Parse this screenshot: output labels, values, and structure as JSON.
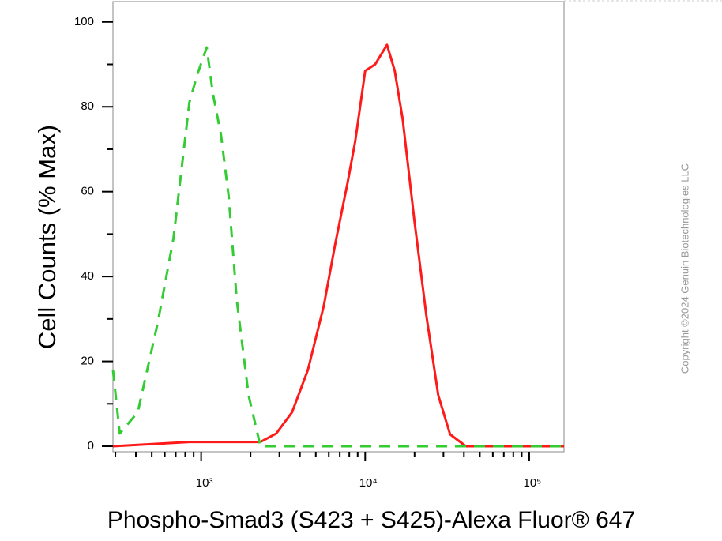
{
  "chart_data": {
    "type": "line",
    "x_label": "Phospho-Smad3 (S423 + S425)-Alexa Fluor® 647",
    "y_label": "Cell Counts (% Max)",
    "annotation": "Copyright ©2024 Genuin Biotechnologies LLC",
    "xscale": "log",
    "xlim": [
      290,
      163000
    ],
    "ylim": [
      -1.3,
      104.8
    ],
    "xticks": [
      {
        "value": 1000,
        "label": "10³"
      },
      {
        "value": 10000,
        "label": "10⁴"
      },
      {
        "value": 100000,
        "label": "10⁵"
      }
    ],
    "xminorticks": [
      300,
      400,
      500,
      600,
      700,
      800,
      900,
      2000,
      3000,
      4000,
      5000,
      6000,
      7000,
      8000,
      9000,
      20000,
      30000,
      40000,
      50000,
      60000,
      70000,
      80000,
      90000
    ],
    "yticks": [
      0,
      20,
      40,
      60,
      80,
      100
    ],
    "yminorticks": [
      10,
      30,
      50,
      70,
      90
    ],
    "series": [
      {
        "color": "#ff1a1a",
        "dash": "solid",
        "x": [
          290,
          847,
          2298,
          2870,
          3581,
          4477,
          5585,
          6595,
          7799,
          8710,
          10000,
          11500,
          13580,
          15150,
          16940,
          19970,
          23620,
          27900,
          32960,
          41130,
          163000
        ],
        "values": [
          0,
          1,
          1,
          3,
          8,
          18,
          33,
          48,
          62,
          72,
          88.5,
          90,
          94.6,
          88.5,
          77,
          53,
          30.7,
          12,
          2.8,
          0,
          0
        ]
      },
      {
        "color": "#33cc33",
        "dash": "dashed",
        "x": [
          290,
          319,
          411,
          543,
          678,
          847,
          946,
          1081,
          1181,
          1320,
          1474,
          1648,
          1946,
          2298,
          163000
        ],
        "values": [
          18,
          3,
          8,
          29,
          49,
          81,
          87.5,
          94,
          83,
          73.5,
          58.7,
          34.5,
          12,
          0,
          0
        ]
      }
    ]
  }
}
